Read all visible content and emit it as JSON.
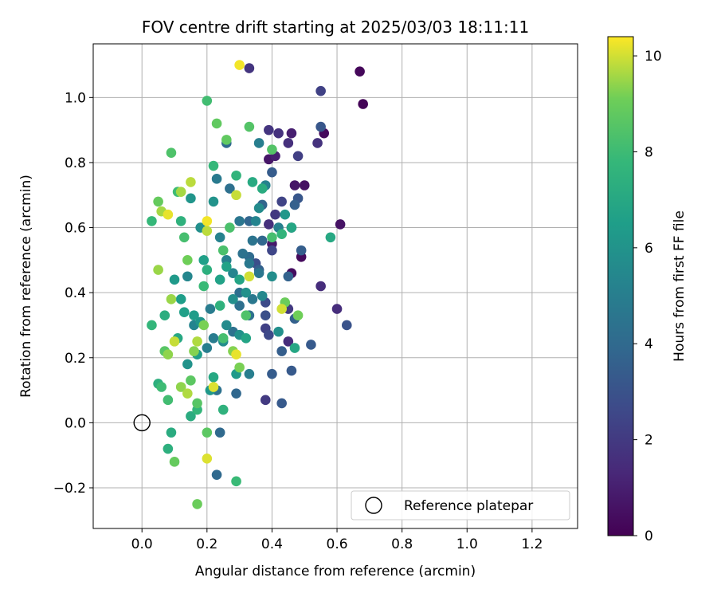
{
  "chart_data": {
    "type": "scatter",
    "title": "FOV centre drift starting at 2025/03/03 18:11:11",
    "xlabel": "Angular distance from reference (arcmin)",
    "ylabel": "Rotation from reference (arcmin)",
    "xlim": [
      -0.15,
      1.34
    ],
    "ylim": [
      -0.325,
      1.165
    ],
    "x_ticks": [
      0.0,
      0.2,
      0.4,
      0.6,
      0.8,
      1.0,
      1.2
    ],
    "x_tick_labels": [
      "0.0",
      "0.2",
      "0.4",
      "0.6",
      "0.8",
      "1.0",
      "1.2"
    ],
    "y_ticks": [
      -0.2,
      0.0,
      0.2,
      0.4,
      0.6,
      0.8,
      1.0
    ],
    "y_tick_labels": [
      "−0.2",
      "0.0",
      "0.2",
      "0.4",
      "0.6",
      "0.8",
      "1.0"
    ],
    "grid": true,
    "legend": {
      "position": "lower-right",
      "entries": [
        "Reference platepar"
      ]
    },
    "colorbar": {
      "label": "Hours from first FF file",
      "colormap": "viridis",
      "range": [
        0,
        10.4
      ],
      "ticks": [
        0,
        2,
        4,
        6,
        8,
        10
      ],
      "tick_labels": [
        "0",
        "2",
        "4",
        "6",
        "8",
        "10"
      ]
    },
    "reference_point": {
      "name": "Reference platepar",
      "x": 0.0,
      "y": 0.0
    },
    "series": [
      {
        "points": [
          [
            0.68,
            0.98,
            0.1
          ],
          [
            0.67,
            1.08,
            0.2
          ],
          [
            0.56,
            0.89,
            0.3
          ],
          [
            0.49,
            0.51,
            0.3
          ],
          [
            0.46,
            0.46,
            0.4
          ],
          [
            0.5,
            0.73,
            0.5
          ],
          [
            0.61,
            0.61,
            0.6
          ],
          [
            0.47,
            0.73,
            0.7
          ],
          [
            0.39,
            0.81,
            0.7
          ],
          [
            0.4,
            0.55,
            0.8
          ],
          [
            0.46,
            0.89,
            1.0
          ],
          [
            0.41,
            0.82,
            1.0
          ],
          [
            0.6,
            0.35,
            1.5
          ],
          [
            0.45,
            0.25,
            1.5
          ],
          [
            0.55,
            0.42,
            1.5
          ],
          [
            0.45,
            0.86,
            1.6
          ],
          [
            0.39,
            0.61,
            1.6
          ],
          [
            0.54,
            0.86,
            1.7
          ],
          [
            0.42,
            0.89,
            1.7
          ],
          [
            0.39,
            0.9,
            1.8
          ],
          [
            0.33,
            1.09,
            1.8
          ],
          [
            0.38,
            0.07,
            2.0
          ],
          [
            0.41,
            0.64,
            1.9
          ],
          [
            0.45,
            0.35,
            2.0
          ],
          [
            0.38,
            0.29,
            2.3
          ],
          [
            0.48,
            0.82,
            2.2
          ],
          [
            0.55,
            1.02,
            2.3
          ],
          [
            0.43,
            0.68,
            2.4
          ],
          [
            0.4,
            0.53,
            2.5
          ],
          [
            0.38,
            0.37,
            2.7
          ],
          [
            0.39,
            0.27,
            2.6
          ],
          [
            0.35,
            0.49,
            2.8
          ],
          [
            0.38,
            0.33,
            2.9
          ],
          [
            0.63,
            0.3,
            3.0
          ],
          [
            0.46,
            0.6,
            3.0
          ],
          [
            0.48,
            0.69,
            3.2
          ],
          [
            0.55,
            0.91,
            3.2
          ],
          [
            0.52,
            0.24,
            3.3
          ],
          [
            0.43,
            0.06,
            3.3
          ],
          [
            0.46,
            0.16,
            3.3
          ],
          [
            0.4,
            0.15,
            3.4
          ],
          [
            0.4,
            0.77,
            3.4
          ],
          [
            0.43,
            0.22,
            3.5
          ],
          [
            0.49,
            0.53,
            3.5
          ],
          [
            0.47,
            0.32,
            3.6
          ],
          [
            0.47,
            0.67,
            3.6
          ],
          [
            0.45,
            0.45,
            3.7
          ],
          [
            0.36,
            0.47,
            3.6
          ],
          [
            0.37,
            0.67,
            3.8
          ],
          [
            0.33,
            0.62,
            3.8
          ],
          [
            0.37,
            0.56,
            3.9
          ],
          [
            0.29,
            0.09,
            3.9
          ],
          [
            0.23,
            -0.16,
            4.0
          ],
          [
            0.24,
            -0.03,
            4.0
          ],
          [
            0.26,
            0.86,
            4.0
          ],
          [
            0.33,
            0.51,
            4.1
          ],
          [
            0.3,
            0.4,
            4.2
          ],
          [
            0.27,
            0.72,
            4.3
          ],
          [
            0.33,
            0.33,
            4.3
          ],
          [
            0.3,
            0.36,
            4.3
          ],
          [
            0.28,
            0.28,
            4.4
          ],
          [
            0.31,
            0.52,
            4.4
          ],
          [
            0.34,
            0.56,
            4.5
          ],
          [
            0.23,
            0.1,
            4.4
          ],
          [
            0.36,
            0.46,
            4.6
          ],
          [
            0.3,
            0.62,
            4.6
          ],
          [
            0.33,
            0.49,
            4.7
          ],
          [
            0.34,
            0.38,
            4.7
          ],
          [
            0.23,
            0.75,
            4.8
          ],
          [
            0.22,
            0.26,
            4.9
          ],
          [
            0.21,
            0.35,
            4.9
          ],
          [
            0.2,
            0.23,
            5.0
          ],
          [
            0.36,
            0.86,
            5.0
          ],
          [
            0.33,
            0.15,
            5.0
          ],
          [
            0.26,
            0.5,
            5.1
          ],
          [
            0.42,
            0.6,
            5.1
          ],
          [
            0.38,
            0.73,
            5.2
          ],
          [
            0.24,
            0.57,
            5.2
          ],
          [
            0.28,
            0.46,
            5.3
          ],
          [
            0.16,
            0.3,
            5.3
          ],
          [
            0.14,
            0.45,
            5.4
          ],
          [
            0.35,
            0.62,
            5.3
          ],
          [
            0.37,
            0.39,
            5.5
          ],
          [
            0.26,
            0.3,
            5.6
          ],
          [
            0.36,
            0.66,
            5.6
          ],
          [
            0.4,
            0.45,
            5.7
          ],
          [
            0.25,
            0.25,
            5.7
          ],
          [
            0.28,
            0.38,
            5.8
          ],
          [
            0.18,
            0.6,
            5.8
          ],
          [
            0.42,
            0.28,
            5.8
          ],
          [
            0.32,
            0.4,
            5.9
          ],
          [
            0.3,
            0.27,
            5.9
          ],
          [
            0.14,
            0.18,
            6.0
          ],
          [
            0.22,
            0.68,
            6.0
          ],
          [
            0.15,
            0.69,
            6.1
          ],
          [
            0.18,
            0.31,
            6.1
          ],
          [
            0.21,
            0.1,
            6.2
          ],
          [
            0.44,
            0.64,
            6.2
          ],
          [
            0.1,
            0.44,
            6.3
          ],
          [
            0.16,
            0.33,
            6.4
          ],
          [
            0.29,
            0.15,
            6.3
          ],
          [
            0.17,
            0.21,
            6.5
          ],
          [
            0.12,
            0.38,
            6.5
          ],
          [
            0.13,
            0.34,
            6.6
          ],
          [
            0.19,
            0.5,
            6.6
          ],
          [
            0.26,
            0.48,
            6.7
          ],
          [
            0.24,
            0.44,
            6.7
          ],
          [
            0.32,
            0.26,
            6.8
          ],
          [
            0.3,
            0.44,
            6.8
          ],
          [
            0.47,
            0.23,
            6.9
          ],
          [
            0.46,
            0.6,
            6.9
          ],
          [
            0.22,
            0.14,
            7.0
          ],
          [
            0.11,
            0.26,
            7.0
          ],
          [
            0.58,
            0.57,
            7.0
          ],
          [
            0.34,
            0.74,
            7.1
          ],
          [
            0.37,
            0.72,
            7.2
          ],
          [
            0.09,
            -0.03,
            7.2
          ],
          [
            0.15,
            0.02,
            7.2
          ],
          [
            0.08,
            -0.08,
            7.4
          ],
          [
            0.07,
            0.33,
            7.3
          ],
          [
            0.05,
            0.12,
            7.4
          ],
          [
            0.2,
            0.47,
            7.4
          ],
          [
            0.12,
            0.62,
            7.5
          ],
          [
            0.24,
            0.36,
            7.5
          ],
          [
            0.25,
            0.04,
            7.5
          ],
          [
            0.43,
            0.58,
            7.6
          ],
          [
            0.29,
            0.76,
            7.6
          ],
          [
            0.17,
            0.04,
            7.7
          ],
          [
            0.03,
            0.3,
            7.7
          ],
          [
            0.03,
            0.62,
            7.8
          ],
          [
            0.22,
            0.79,
            7.8
          ],
          [
            0.29,
            -0.18,
            7.9
          ],
          [
            0.19,
            0.42,
            7.9
          ],
          [
            0.06,
            0.11,
            8.0
          ],
          [
            0.11,
            0.71,
            8.0
          ],
          [
            0.2,
            0.99,
            8.1
          ],
          [
            0.08,
            0.07,
            8.1
          ],
          [
            0.25,
            0.26,
            8.2
          ],
          [
            0.13,
            0.57,
            8.2
          ],
          [
            0.4,
            0.57,
            8.2
          ],
          [
            0.27,
            0.6,
            8.3
          ],
          [
            0.25,
            0.53,
            8.3
          ],
          [
            0.32,
            0.33,
            8.4
          ],
          [
            0.09,
            0.83,
            8.4
          ],
          [
            0.4,
            0.84,
            8.5
          ],
          [
            0.33,
            0.91,
            8.5
          ],
          [
            0.17,
            0.06,
            8.6
          ],
          [
            0.07,
            0.22,
            8.6
          ],
          [
            0.15,
            0.13,
            8.7
          ],
          [
            0.2,
            -0.03,
            8.7
          ],
          [
            0.23,
            0.92,
            8.8
          ],
          [
            0.26,
            0.87,
            8.8
          ],
          [
            0.05,
            0.68,
            8.9
          ],
          [
            0.1,
            -0.12,
            8.9
          ],
          [
            0.17,
            -0.25,
            9.0
          ],
          [
            0.44,
            0.37,
            9.0
          ],
          [
            0.48,
            0.33,
            9.1
          ],
          [
            0.14,
            0.5,
            9.1
          ],
          [
            0.19,
            0.3,
            9.2
          ],
          [
            0.3,
            0.17,
            9.2
          ],
          [
            0.28,
            0.22,
            9.3
          ],
          [
            0.16,
            0.22,
            9.3
          ],
          [
            0.08,
            0.21,
            9.4
          ],
          [
            0.12,
            0.11,
            9.4
          ],
          [
            0.05,
            0.47,
            9.5
          ],
          [
            0.09,
            0.38,
            9.5
          ],
          [
            0.06,
            0.65,
            9.6
          ],
          [
            0.12,
            0.71,
            9.6
          ],
          [
            0.17,
            0.25,
            9.7
          ],
          [
            0.14,
            0.09,
            9.7
          ],
          [
            0.15,
            0.74,
            9.8
          ],
          [
            0.2,
            0.59,
            9.8
          ],
          [
            0.29,
            0.7,
            9.9
          ],
          [
            0.1,
            0.25,
            9.9
          ],
          [
            0.33,
            0.45,
            10.0
          ],
          [
            0.43,
            0.35,
            10.0
          ],
          [
            0.2,
            -0.11,
            10.1
          ],
          [
            0.22,
            0.11,
            10.1
          ],
          [
            0.08,
            0.64,
            10.2
          ],
          [
            0.29,
            0.21,
            10.2
          ],
          [
            0.3,
            1.1,
            10.3
          ],
          [
            0.2,
            0.62,
            10.3
          ]
        ]
      }
    ]
  }
}
